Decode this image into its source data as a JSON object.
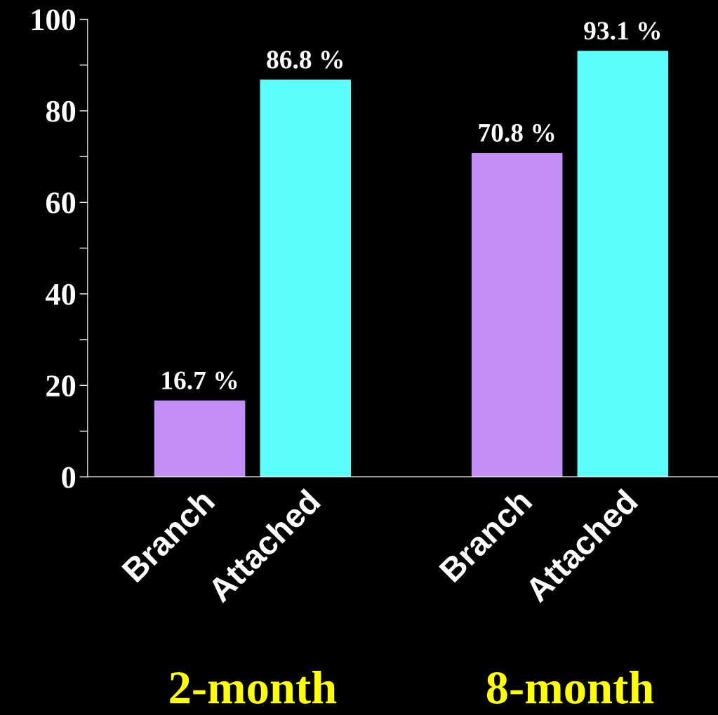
{
  "chart_data": {
    "type": "bar",
    "categories": [
      "Branch",
      "Attached",
      null,
      "Branch",
      "Attached"
    ],
    "values": [
      16.7,
      86.8,
      null,
      70.8,
      93.1
    ],
    "colors": [
      "#c38ef5",
      "#5cfdfb",
      "#000000",
      "#c38ef5",
      "#5cfdfb"
    ],
    "value_labels": [
      "16.7 %",
      "86.8 %",
      null,
      "70.8 %",
      "93.1 %"
    ],
    "ylim": [
      0,
      100
    ],
    "yticks": [
      0,
      {
        "value": 10,
        "label": null
      },
      20,
      {
        "value": 30,
        "label": null
      },
      40,
      {
        "value": 50,
        "label": null
      },
      60,
      {
        "value": 70,
        "label": null
      },
      80,
      {
        "value": 90,
        "label": null
      },
      100
    ],
    "annotations": [
      "2-month",
      "8-month"
    ],
    "grid": false,
    "legend": false
  }
}
